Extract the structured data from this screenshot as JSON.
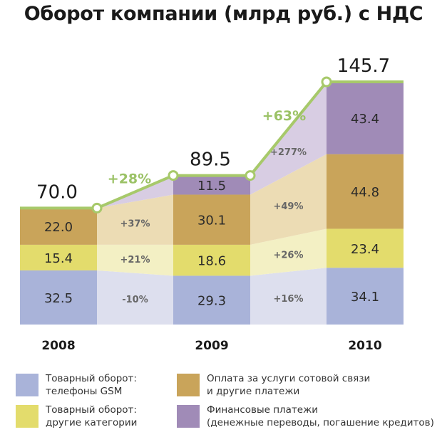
{
  "chart_data": {
    "type": "bar",
    "title": "Оборот компании (млрд руб.) с НДС",
    "categories": [
      "2008",
      "2009",
      "2010"
    ],
    "totals": [
      "70.0",
      "89.5",
      "145.7"
    ],
    "series": [
      {
        "name": "Товарный оборот: телефоны GSM",
        "values": [
          32.5,
          29.3,
          34.1
        ],
        "labels": [
          "32.5",
          "29.3",
          "34.1"
        ],
        "color": "#a9b3d9",
        "band_color": "#dddfee"
      },
      {
        "name": "Товарный оборот: другие категории",
        "values": [
          15.4,
          18.6,
          23.4
        ],
        "labels": [
          "15.4",
          "18.6",
          "23.4"
        ],
        "color": "#e3dc6c",
        "band_color": "#f3f0c4"
      },
      {
        "name": "Оплата за услуги сотовой связи и другие платежи",
        "values": [
          22.0,
          30.1,
          44.8
        ],
        "labels": [
          "22.0",
          "30.1",
          "44.8"
        ],
        "color": "#c9a45a",
        "band_color": "#ecdcb4"
      },
      {
        "name": "Финансовые платежи (денежные переводы, погашение кредитов)",
        "values": [
          0.0,
          11.5,
          43.4
        ],
        "labels": [
          "",
          "11.5",
          "43.4"
        ],
        "color": "#a08bb7",
        "band_color": "#d8cde3"
      }
    ],
    "total_growth": [
      "+28%",
      "+63%"
    ],
    "segment_growth": [
      [
        "-10%",
        "+21%",
        "+37%",
        ""
      ],
      [
        "+16%",
        "+26%",
        "+49%",
        "+277%"
      ]
    ],
    "colors": {
      "total_line": "#a7c96a",
      "growth_text": "#9bc266",
      "segment_growth_text": "#666666"
    }
  },
  "legend": {
    "items": [
      {
        "line1": "Товарный оборот:",
        "line2": "телефоны GSM"
      },
      {
        "line1": "Оплата за услуги сотовой связи",
        "line2": "и другие платежи"
      },
      {
        "line1": "Товарный оборот:",
        "line2": "другие категории"
      },
      {
        "line1": "Финансовые платежи",
        "line2": "(денежные переводы, погашение кредитов)"
      }
    ]
  }
}
